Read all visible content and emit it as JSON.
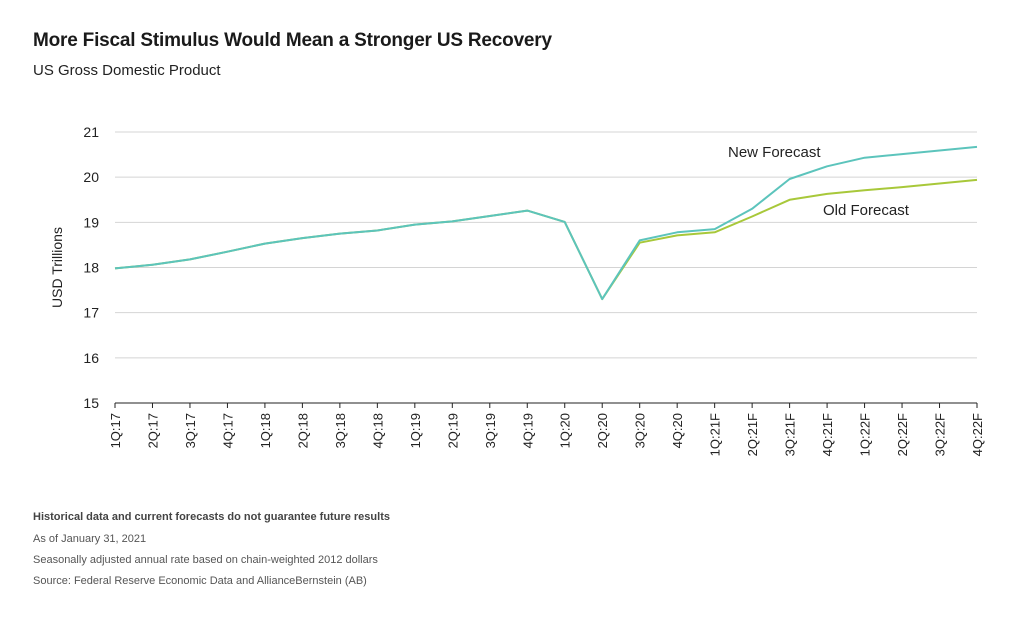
{
  "title": "More Fiscal Stimulus Would Mean a Stronger US Recovery",
  "subtitle": "US Gross Domestic Product",
  "footnotes": {
    "disclaimer": "Historical data and current forecasts do not guarantee future results",
    "asof": "As of January 31, 2021",
    "basis": "Seasonally adjusted annual rate based on chain-weighted 2012 dollars",
    "source": "Source: Federal Reserve Economic Data and AllianceBernstein (AB)"
  },
  "chart_data": {
    "type": "line",
    "ylabel": "USD Trillions",
    "xlabel": "",
    "ylim": [
      15,
      21
    ],
    "yticks": [
      15,
      16,
      17,
      18,
      19,
      20,
      21
    ],
    "grid": true,
    "categories": [
      "1Q:17",
      "2Q:17",
      "3Q:17",
      "4Q:17",
      "1Q:18",
      "2Q:18",
      "3Q:18",
      "4Q:18",
      "1Q:19",
      "2Q:19",
      "3Q:19",
      "4Q:19",
      "1Q:20",
      "2Q:20",
      "3Q:20",
      "4Q:20",
      "1Q:21F",
      "2Q:21F",
      "3Q:21F",
      "4Q:21F",
      "1Q:22F",
      "2Q:22F",
      "3Q:22F",
      "4Q:22F"
    ],
    "series": [
      {
        "name": "New Forecast",
        "color": "#5cc4bc",
        "values": [
          17.98,
          18.06,
          18.18,
          18.35,
          18.53,
          18.65,
          18.75,
          18.82,
          18.95,
          19.02,
          19.14,
          19.26,
          19.01,
          17.3,
          18.6,
          18.78,
          18.85,
          19.3,
          19.96,
          20.24,
          20.43,
          20.51,
          20.59,
          20.67
        ]
      },
      {
        "name": "Old Forecast",
        "color": "#a8c83a",
        "values": [
          17.98,
          18.06,
          18.18,
          18.35,
          18.53,
          18.65,
          18.75,
          18.82,
          18.95,
          19.02,
          19.14,
          19.26,
          19.01,
          17.3,
          18.55,
          18.71,
          18.78,
          19.13,
          19.5,
          19.63,
          19.71,
          19.78,
          19.86,
          19.94
        ]
      }
    ],
    "colors": {
      "grid": "#d4d4d4",
      "axis": "#222222"
    }
  }
}
